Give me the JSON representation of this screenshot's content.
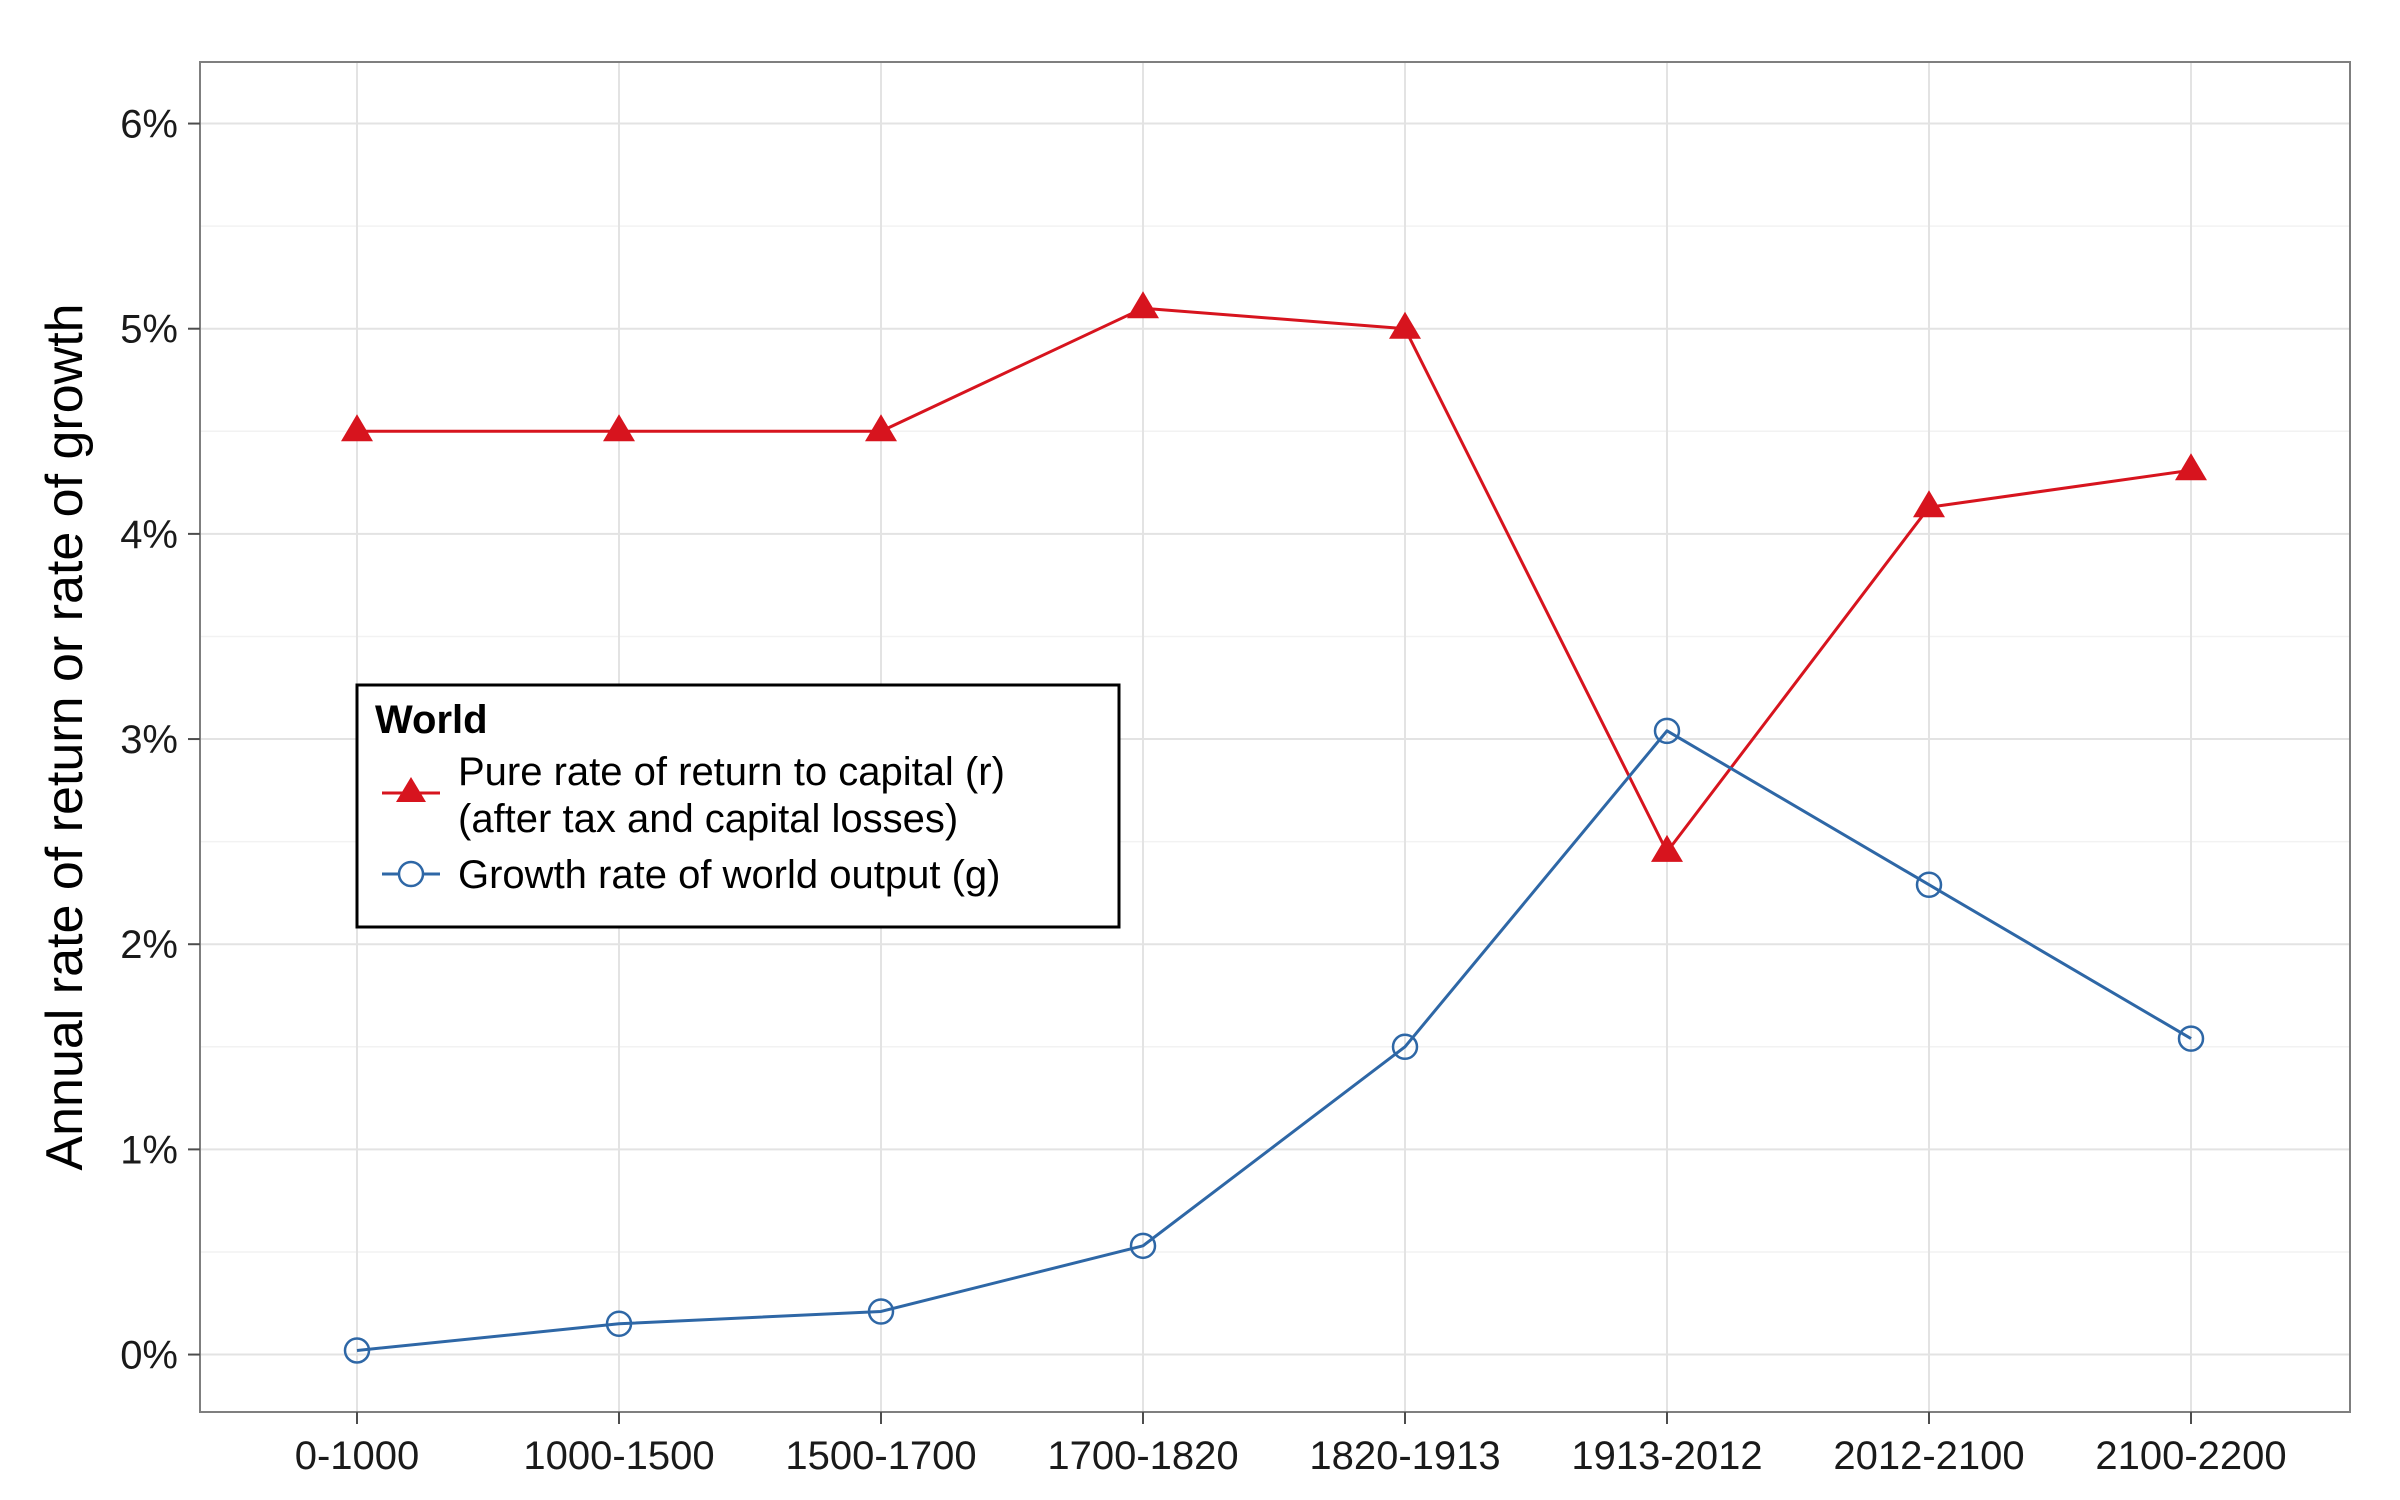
{
  "chart_data": {
    "type": "line",
    "title": "",
    "xlabel": "",
    "ylabel": "Annual rate of return or rate of growth",
    "categories": [
      "0-1000",
      "1000-1500",
      "1500-1700",
      "1700-1820",
      "1820-1913",
      "1913-2012",
      "2012-2100",
      "2100-2200"
    ],
    "y_ticks": [
      0,
      1,
      2,
      3,
      4,
      5,
      6
    ],
    "y_tick_labels": [
      "0%",
      "1%",
      "2%",
      "3%",
      "4%",
      "5%",
      "6%"
    ],
    "ylim": [
      -0.28,
      6.3
    ],
    "grid": true,
    "legend": {
      "title": "World",
      "position": "center-left"
    },
    "series": [
      {
        "name": "Pure rate of return to capital (r)",
        "name_line2": "(after tax and capital losses)",
        "values": [
          4.5,
          4.5,
          4.5,
          5.1,
          5.0,
          2.45,
          4.13,
          4.31
        ],
        "color": "#d7141e",
        "marker": "filled-triangle"
      },
      {
        "name": "Growth rate of world output (g)",
        "values": [
          0.02,
          0.15,
          0.21,
          0.53,
          1.5,
          3.04,
          2.29,
          1.54
        ],
        "color": "#2e67a6",
        "marker": "open-circle"
      }
    ]
  }
}
